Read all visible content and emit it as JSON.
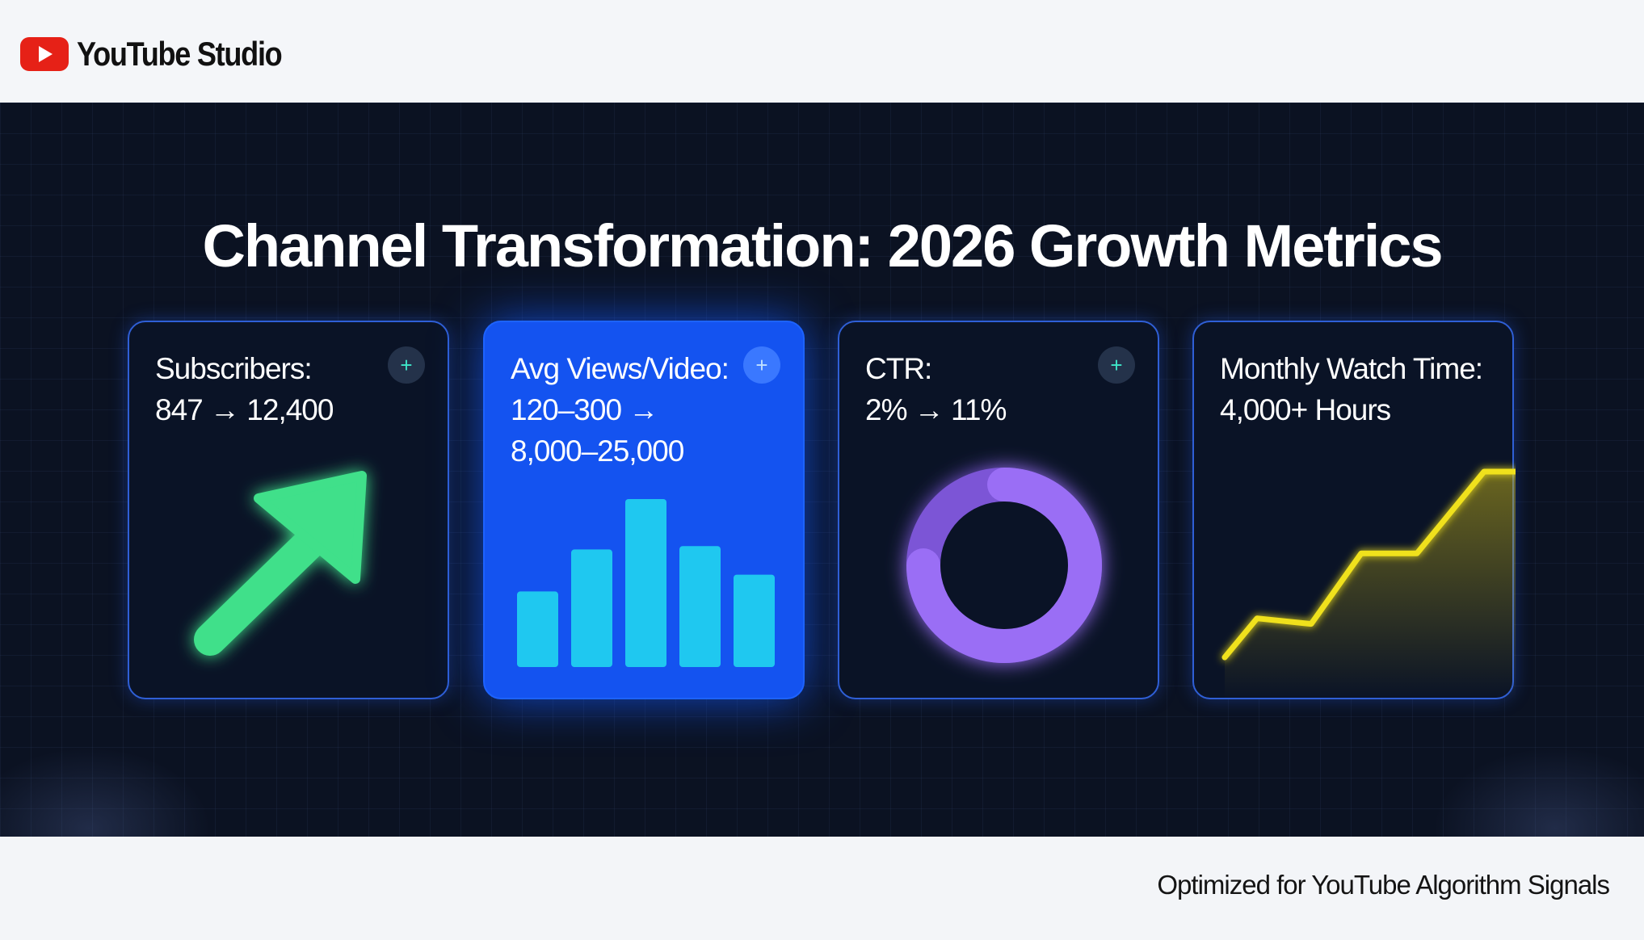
{
  "header": {
    "app_name": "YouTube Studio",
    "logo_icon": "youtube-play-icon",
    "logo_color": "#e62117"
  },
  "headline": "Channel Transformation: 2026 Growth Metrics",
  "cards": [
    {
      "label": "Subscribers:",
      "value": "847 → 12,400",
      "action_icon": "plus-icon",
      "graphic": "up-arrow-icon",
      "accent": "#3fe08a"
    },
    {
      "label": "Avg Views/Video:",
      "value_lines": [
        "120–300 →",
        "8,000–25,000"
      ],
      "action_icon": "plus-icon",
      "graphic": "bar-chart-icon",
      "accent": "#1fc8f0",
      "active": true,
      "bar_levels": [
        0.45,
        0.7,
        1.0,
        0.72,
        0.55
      ]
    },
    {
      "label": "CTR:",
      "value": "2% → 11%",
      "action_icon": "plus-icon",
      "graphic": "ring-chart-icon",
      "accent": "#8f63f0"
    },
    {
      "label": "Monthly Watch Time:",
      "value": "4,000+ Hours",
      "graphic": "trend-line-icon",
      "accent": "#f0e11e",
      "trend_levels": [
        0.0,
        0.21,
        0.18,
        0.56,
        0.56,
        1.0,
        1.0
      ]
    }
  ],
  "footer": {
    "tagline": "Optimized for YouTube Algorithm Signals"
  }
}
